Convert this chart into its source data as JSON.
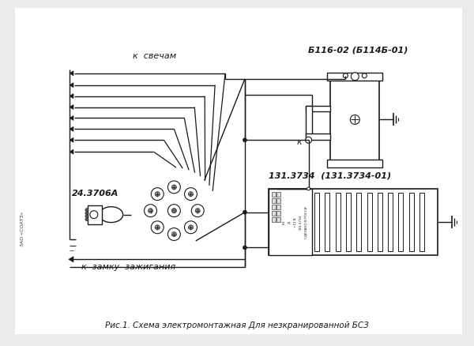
{
  "bg_color": "#f0f0ec",
  "line_color": "#1a1a1a",
  "title_text": "Рис.1. Схема электромонтажная Для незкранированной БСЗ",
  "label_sparks": "к  свечам",
  "label_ignition": "к  замку  зажигания",
  "label_dist": "24.3706А",
  "label_coil": "Б116-02 (Б114Б-01)",
  "label_module": "131.3734  (131.3734-01)",
  "label_k": "к",
  "label_side": "ЗАО «СОАТЗ»",
  "font_color": "#1a1a1a"
}
